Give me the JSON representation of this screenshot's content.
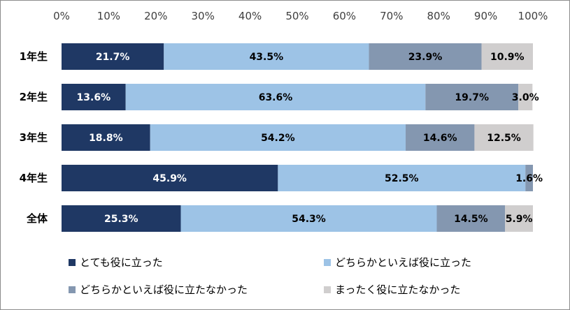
{
  "chart_data": {
    "type": "bar",
    "orientation": "horizontal",
    "stacked": true,
    "percent": true,
    "categories": [
      "1年生",
      "2年生",
      "3年生",
      "4年生",
      "全体"
    ],
    "series": [
      {
        "name": "とても役に立った",
        "color": "#1f3864",
        "label_color": "#ffffff",
        "values": [
          21.7,
          13.6,
          18.8,
          45.9,
          25.3
        ],
        "labels": [
          "21.7%",
          "13.6%",
          "18.8%",
          "45.9%",
          "25.3%"
        ]
      },
      {
        "name": "どちらかといえば役に立った",
        "color": "#9dc3e6",
        "label_color": "#000000",
        "values": [
          43.5,
          63.6,
          54.2,
          52.5,
          54.3
        ],
        "labels": [
          "43.5%",
          "63.6%",
          "54.2%",
          "52.5%",
          "54.3%"
        ]
      },
      {
        "name": "どちらかといえば役に立たなかった",
        "color": "#8497b0",
        "label_color": "#000000",
        "values": [
          23.9,
          19.7,
          14.6,
          1.6,
          14.5
        ],
        "labels": [
          "23.9%",
          "19.7%",
          "14.6%",
          "1.6%",
          "14.5%"
        ]
      },
      {
        "name": "まったく役に立たなかった",
        "color": "#d0cece",
        "label_color": "#000000",
        "values": [
          10.9,
          3.0,
          12.5,
          0.0,
          5.9
        ],
        "labels": [
          "10.9%",
          "3.0%",
          "12.5%",
          "",
          "5.9%"
        ]
      }
    ],
    "x_ticks": [
      "0%",
      "10%",
      "20%",
      "30%",
      "40%",
      "50%",
      "60%",
      "70%",
      "80%",
      "90%",
      "100%"
    ],
    "xlim": [
      0,
      100
    ],
    "axis_position": "top",
    "grid": false,
    "legend_position": "bottom"
  }
}
